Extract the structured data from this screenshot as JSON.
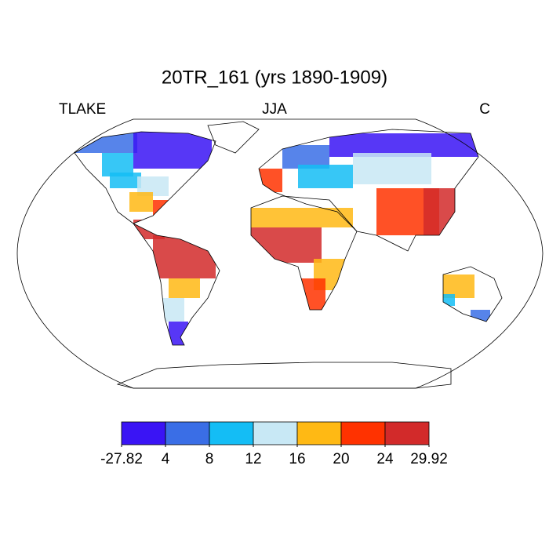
{
  "title": "20TR_161 (yrs 1890-1909)",
  "left_label": "TLAKE",
  "center_label": "JJA",
  "right_label": "C",
  "colorbar": {
    "levels": [
      -27.82,
      4,
      8,
      12,
      16,
      20,
      24,
      29.92
    ],
    "colors": [
      "#3a14f5",
      "#3a6ee6",
      "#14bdf5",
      "#c8e8f5",
      "#ffb914",
      "#ff3200",
      "#d22a2a"
    ]
  }
}
